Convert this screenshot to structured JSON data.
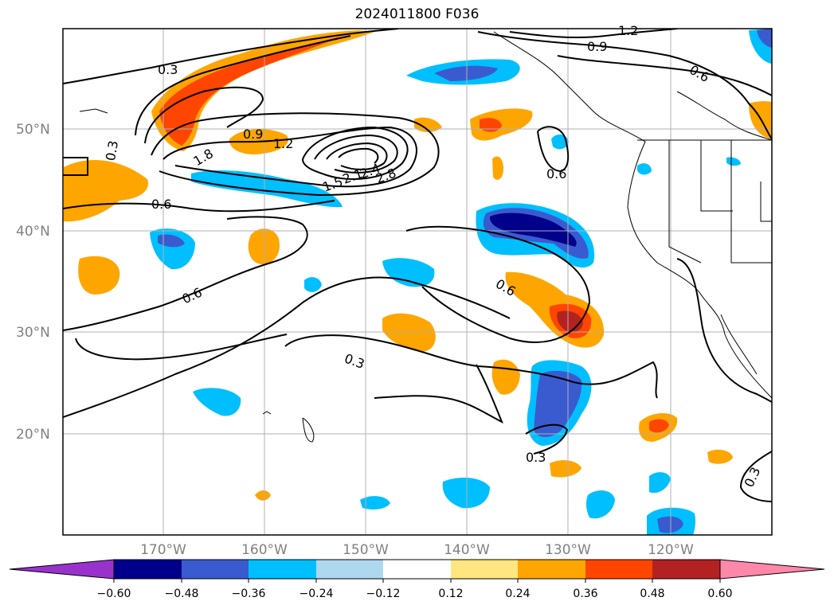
{
  "title": "2024011800 F036",
  "map": {
    "lon_labels": [
      "170°W",
      "160°W",
      "150°W",
      "140°W",
      "130°W",
      "120°W"
    ],
    "lat_labels": [
      "50°N",
      "40°N",
      "30°N",
      "20°N"
    ],
    "contour_labels": [
      "0.3",
      "0.9",
      "1.2",
      "0.6",
      "0.3",
      "0.9",
      "1.2",
      "1.8",
      "1.5",
      "2.1",
      "2.4",
      "2.8",
      "0.6",
      "0.6",
      "0.6",
      "0.6",
      "0.3",
      "0.3",
      "0.3"
    ]
  },
  "colorbar": {
    "tick_labels": [
      "−0.60",
      "−0.48",
      "−0.36",
      "−0.24",
      "−0.12",
      "0.12",
      "0.24",
      "0.36",
      "0.48",
      "0.60"
    ],
    "colors": [
      "#9932cc",
      "#00008b",
      "#3a5bcf",
      "#00bfff",
      "#add8f0",
      "#ffffff",
      "#ffe680",
      "#ffa500",
      "#ff4500",
      "#b22222",
      "#ff88aa"
    ]
  }
}
